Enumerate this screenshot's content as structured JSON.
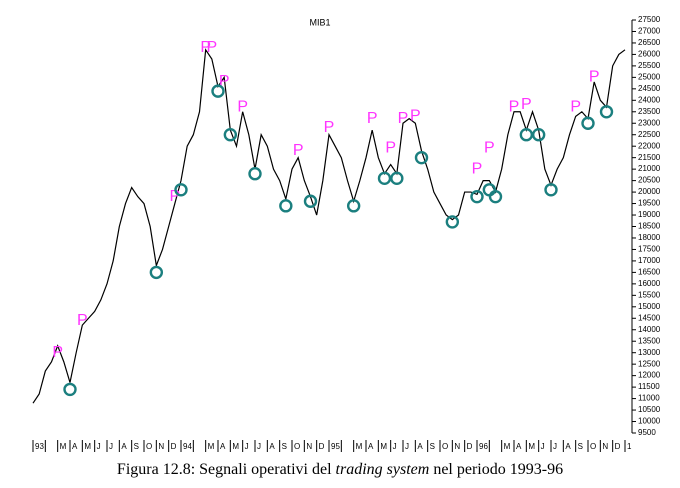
{
  "chart_data": {
    "type": "line",
    "title": "MIB1",
    "categories": [
      "93",
      null,
      null,
      null,
      "M",
      null,
      "A",
      null,
      "M",
      null,
      "J",
      null,
      "J",
      null,
      "A",
      null,
      "S",
      null,
      "O",
      null,
      "N",
      null,
      "D",
      null,
      "94",
      null,
      null,
      null,
      "M",
      null,
      "A",
      null,
      "M",
      null,
      "J",
      null,
      "J",
      null,
      "A",
      null,
      "S",
      null,
      "O",
      null,
      "N",
      null,
      "D",
      null,
      "95",
      null,
      null,
      null,
      "M",
      null,
      "A",
      null,
      "M",
      null,
      "J",
      null,
      "J",
      null,
      "A",
      null,
      "S",
      null,
      "O",
      null,
      "N",
      null,
      "D",
      null,
      "96",
      null,
      null,
      null,
      "M",
      null,
      "A",
      null,
      "M",
      null,
      "J",
      null,
      "J",
      null,
      "A",
      null,
      "S",
      null,
      "O",
      null,
      "N",
      null,
      "D",
      null,
      "1"
    ],
    "series": [
      {
        "color": "#000000",
        "values": [
          10800,
          11200,
          12200,
          12600,
          13300,
          12600,
          11700,
          13000,
          14200,
          14500,
          14800,
          15300,
          16000,
          17000,
          18500,
          19500,
          20200,
          19800,
          19500,
          18500,
          16800,
          17500,
          18500,
          19500,
          20500,
          22000,
          22500,
          23500,
          26200,
          25800,
          24600,
          25000,
          22700,
          22000,
          23500,
          22500,
          21000,
          22500,
          22000,
          21000,
          20500,
          19700,
          21000,
          21500,
          20500,
          19800,
          19000,
          20500,
          22500,
          22000,
          21500,
          20500,
          19600,
          20500,
          21500,
          22700,
          21500,
          20800,
          21200,
          20800,
          23000,
          23200,
          23000,
          21800,
          21000,
          20000,
          19500,
          19000,
          18800,
          19000,
          20000,
          20000,
          19900,
          20500,
          20500,
          20000,
          21000,
          22500,
          23500,
          23500,
          22700,
          23500,
          22700,
          21000,
          20300,
          21000,
          21500,
          22500,
          23300,
          23500,
          23200,
          24800,
          24000,
          23700,
          25500,
          26000,
          26200
        ]
      },
      {
        "marker": "P",
        "color": "#ff33ff",
        "values": [
          null,
          null,
          null,
          null,
          13000,
          null,
          null,
          null,
          14400,
          null,
          null,
          null,
          null,
          null,
          null,
          null,
          null,
          null,
          null,
          null,
          null,
          null,
          null,
          19800,
          null,
          null,
          null,
          null,
          26300,
          26300,
          null,
          24800,
          null,
          null,
          23700,
          null,
          null,
          null,
          null,
          null,
          null,
          null,
          null,
          21800,
          null,
          null,
          null,
          null,
          22800,
          null,
          null,
          null,
          null,
          null,
          null,
          23200,
          null,
          null,
          21900,
          null,
          23200,
          null,
          23300,
          null,
          null,
          null,
          null,
          null,
          null,
          null,
          null,
          null,
          21000,
          null,
          21900,
          null,
          null,
          null,
          23700,
          null,
          23800,
          null,
          null,
          null,
          null,
          null,
          null,
          null,
          23700,
          null,
          null,
          25000,
          null,
          null,
          null,
          null,
          null
        ]
      },
      {
        "marker": "circle",
        "color": "#1b7f7f",
        "values": [
          null,
          null,
          null,
          null,
          null,
          null,
          11400,
          null,
          null,
          null,
          null,
          null,
          null,
          null,
          null,
          null,
          null,
          null,
          null,
          null,
          16500,
          null,
          null,
          null,
          20100,
          null,
          null,
          null,
          null,
          null,
          24400,
          null,
          22500,
          null,
          null,
          null,
          20800,
          null,
          null,
          null,
          null,
          19400,
          null,
          null,
          null,
          19600,
          null,
          null,
          null,
          null,
          null,
          null,
          19400,
          null,
          null,
          null,
          null,
          20600,
          null,
          20600,
          null,
          null,
          null,
          21500,
          null,
          null,
          null,
          null,
          18700,
          null,
          null,
          null,
          19800,
          null,
          20100,
          19800,
          null,
          null,
          null,
          null,
          22500,
          null,
          22500,
          null,
          20100,
          null,
          null,
          null,
          null,
          null,
          23000,
          null,
          null,
          23500,
          null,
          null,
          null
        ]
      }
    ],
    "ylim": [
      9500,
      27500
    ],
    "yticks": [
      9500,
      10000,
      10500,
      11000,
      11500,
      12000,
      12500,
      13000,
      13500,
      14000,
      14500,
      15000,
      15500,
      16000,
      16500,
      17000,
      17500,
      18000,
      18500,
      19000,
      19500,
      20000,
      20500,
      21000,
      21500,
      22000,
      22500,
      23000,
      23500,
      24000,
      24500,
      25000,
      25500,
      26000,
      26500,
      27000,
      27500
    ]
  },
  "caption": [
    "Figura 12.8: Segnali operativi del ",
    "trading system",
    " nel periodo 1993-96"
  ]
}
